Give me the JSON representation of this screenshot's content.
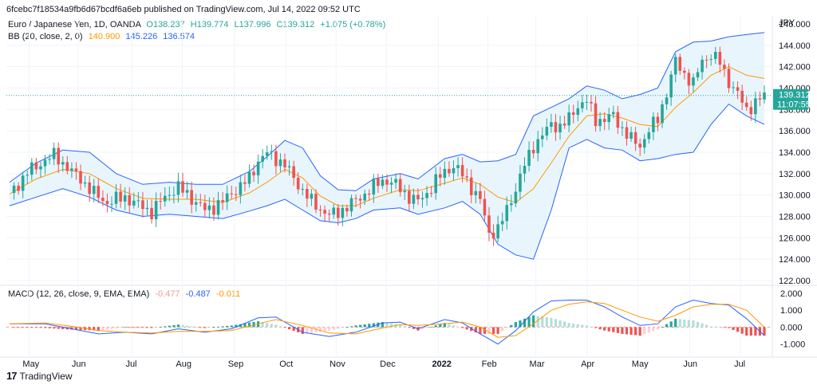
{
  "header": "6fcebc7f18534a9fb6d67bcdf6a6eb published on TradingView.com, Jul 14, 2022 09:52 UTC",
  "legend": {
    "symbol": "Euro / Japanese Yen, 1D, OANDA",
    "open": "O138.237",
    "high": "H139.774",
    "low": "L137.996",
    "close": "C139.312",
    "change": "+1.075 (+0.78%)",
    "bb_label": "BB (20, close, 2, 0)",
    "bb_basis": "140.900",
    "bb_upper": "145.226",
    "bb_lower": "136.574",
    "macd_label": "MACD (12, 26, close, 9, EMA, EMA)",
    "macd_hist": "-0.477",
    "macd_line": "-0.487",
    "macd_signal": "-0.011"
  },
  "price_box": {
    "price": "139.312",
    "countdown": "11:07:55"
  },
  "brand": {
    "logo": "TradingView"
  },
  "colors": {
    "up": "#26a69a",
    "down": "#ef5350",
    "bb_fill": "#e3f2fd",
    "bb_band": "#2962ff",
    "basis": "#ff9800",
    "macd": "#2962ff",
    "signal": "#ff9800"
  },
  "chart_data": {
    "type": "candlestick",
    "price_axis": {
      "unit": "JPY",
      "ticks": [
        "146.000",
        "144.000",
        "142.000",
        "140.000",
        "138.000",
        "136.000",
        "134.000",
        "132.000",
        "130.000",
        "128.000",
        "126.000",
        "124.000",
        "122.000"
      ],
      "ylim": [
        122,
        146
      ]
    },
    "macd_axis": {
      "ticks": [
        "2.000",
        "1.000",
        "0.000",
        "-1.000"
      ],
      "ylim": [
        -1.3,
        2.0
      ]
    },
    "time_axis": {
      "labels": [
        "May",
        "Jun",
        "Jul",
        "Aug",
        "Sep",
        "Oct",
        "Nov",
        "Dec",
        "2022",
        "Feb",
        "Mar",
        "Apr",
        "May",
        "Jun",
        "Jul"
      ],
      "positions": [
        0.037,
        0.117,
        0.205,
        0.287,
        0.372,
        0.456,
        0.538,
        0.62,
        0.705,
        0.786,
        0.864,
        0.948,
        1.031,
        1.115,
        1.198
      ]
    },
    "close_path": [
      [
        0,
        130.2
      ],
      [
        2,
        131.0
      ],
      [
        4,
        132.2
      ],
      [
        6,
        132.6
      ],
      [
        8,
        133.3
      ],
      [
        10,
        133.7
      ],
      [
        12,
        133.0
      ],
      [
        14,
        132.2
      ],
      [
        16,
        131.5
      ],
      [
        18,
        130.6
      ],
      [
        20,
        129.8
      ],
      [
        22,
        129.3
      ],
      [
        24,
        129.6
      ],
      [
        26,
        129.8
      ],
      [
        28,
        129.3
      ],
      [
        30,
        128.9
      ],
      [
        32,
        128.4
      ],
      [
        34,
        129.4
      ],
      [
        36,
        130.2
      ],
      [
        38,
        130.7
      ],
      [
        40,
        130.1
      ],
      [
        42,
        129.3
      ],
      [
        44,
        128.6
      ],
      [
        46,
        128.9
      ],
      [
        48,
        129.4
      ],
      [
        50,
        130.2
      ],
      [
        52,
        130.8
      ],
      [
        54,
        131.6
      ],
      [
        56,
        133.2
      ],
      [
        58,
        133.9
      ],
      [
        60,
        133.4
      ],
      [
        62,
        132.8
      ],
      [
        64,
        131.6
      ],
      [
        66,
        130.4
      ],
      [
        68,
        129.4
      ],
      [
        70,
        128.7
      ],
      [
        72,
        128.1
      ],
      [
        74,
        128.4
      ],
      [
        76,
        128.9
      ],
      [
        78,
        129.5
      ],
      [
        80,
        130.1
      ],
      [
        82,
        130.8
      ],
      [
        84,
        131.4
      ],
      [
        86,
        131.2
      ],
      [
        88,
        130.6
      ],
      [
        90,
        129.8
      ],
      [
        92,
        129.4
      ],
      [
        94,
        130.2
      ],
      [
        96,
        131.3
      ],
      [
        98,
        132.2
      ],
      [
        100,
        132.7
      ],
      [
        102,
        131.9
      ],
      [
        104,
        130.7
      ],
      [
        106,
        129.5
      ],
      [
        108,
        126.4
      ],
      [
        110,
        126.8
      ],
      [
        112,
        128.6
      ],
      [
        114,
        130.6
      ],
      [
        116,
        132.8
      ],
      [
        118,
        134.6
      ],
      [
        120,
        135.6
      ],
      [
        122,
        136.6
      ],
      [
        124,
        136.4
      ],
      [
        126,
        137.1
      ],
      [
        128,
        138.4
      ],
      [
        130,
        138.8
      ],
      [
        132,
        137.0
      ],
      [
        134,
        137.1
      ],
      [
        136,
        137.4
      ],
      [
        138,
        136.2
      ],
      [
        140,
        135.2
      ],
      [
        142,
        134.6
      ],
      [
        144,
        136.1
      ],
      [
        146,
        137.1
      ],
      [
        148,
        139.6
      ],
      [
        150,
        142.5
      ],
      [
        152,
        141.3
      ],
      [
        154,
        140.4
      ],
      [
        156,
        142.6
      ],
      [
        158,
        143.1
      ],
      [
        160,
        142.4
      ],
      [
        162,
        140.6
      ],
      [
        164,
        139.4
      ],
      [
        166,
        138.0
      ],
      [
        168,
        138.6
      ],
      [
        170,
        139.3
      ]
    ],
    "bb_upper": [
      [
        0,
        131.2
      ],
      [
        6,
        133.0
      ],
      [
        12,
        134.2
      ],
      [
        18,
        134.0
      ],
      [
        24,
        132.0
      ],
      [
        30,
        131.0
      ],
      [
        36,
        131.2
      ],
      [
        42,
        131.0
      ],
      [
        48,
        131.0
      ],
      [
        54,
        132.2
      ],
      [
        58,
        133.6
      ],
      [
        62,
        135.1
      ],
      [
        66,
        134.4
      ],
      [
        70,
        131.8
      ],
      [
        74,
        130.5
      ],
      [
        78,
        130.4
      ],
      [
        82,
        131.5
      ],
      [
        88,
        132.0
      ],
      [
        92,
        131.5
      ],
      [
        98,
        133.4
      ],
      [
        102,
        133.8
      ],
      [
        106,
        133.1
      ],
      [
        110,
        133.2
      ],
      [
        114,
        133.8
      ],
      [
        118,
        137.4
      ],
      [
        122,
        138.2
      ],
      [
        126,
        139.0
      ],
      [
        130,
        140.2
      ],
      [
        134,
        139.8
      ],
      [
        138,
        139.0
      ],
      [
        142,
        139.4
      ],
      [
        146,
        140.0
      ],
      [
        150,
        143.4
      ],
      [
        154,
        144.3
      ],
      [
        158,
        144.4
      ],
      [
        162,
        144.8
      ],
      [
        166,
        145.0
      ],
      [
        170,
        145.2
      ]
    ],
    "bb_lower": [
      [
        0,
        129.0
      ],
      [
        6,
        129.8
      ],
      [
        12,
        130.6
      ],
      [
        18,
        129.8
      ],
      [
        24,
        128.6
      ],
      [
        30,
        128.0
      ],
      [
        36,
        128.2
      ],
      [
        42,
        128.0
      ],
      [
        48,
        127.8
      ],
      [
        54,
        128.5
      ],
      [
        58,
        129.0
      ],
      [
        62,
        129.6
      ],
      [
        66,
        128.6
      ],
      [
        70,
        127.6
      ],
      [
        74,
        127.4
      ],
      [
        78,
        127.8
      ],
      [
        82,
        128.6
      ],
      [
        88,
        128.8
      ],
      [
        92,
        128.2
      ],
      [
        98,
        128.8
      ],
      [
        102,
        129.4
      ],
      [
        106,
        128.2
      ],
      [
        110,
        125.4
      ],
      [
        114,
        124.4
      ],
      [
        118,
        124.0
      ],
      [
        122,
        128.6
      ],
      [
        126,
        134.4
      ],
      [
        130,
        135.2
      ],
      [
        134,
        134.4
      ],
      [
        138,
        134.2
      ],
      [
        142,
        133.2
      ],
      [
        146,
        133.4
      ],
      [
        150,
        133.8
      ],
      [
        154,
        134.0
      ],
      [
        158,
        136.6
      ],
      [
        162,
        138.5
      ],
      [
        166,
        137.4
      ],
      [
        170,
        136.6
      ]
    ],
    "bb_basis": [
      [
        0,
        130.1
      ],
      [
        6,
        131.5
      ],
      [
        12,
        132.4
      ],
      [
        18,
        132.0
      ],
      [
        24,
        130.6
      ],
      [
        30,
        129.7
      ],
      [
        36,
        129.6
      ],
      [
        42,
        129.6
      ],
      [
        48,
        129.3
      ],
      [
        54,
        130.2
      ],
      [
        58,
        131.2
      ],
      [
        62,
        132.4
      ],
      [
        66,
        131.6
      ],
      [
        70,
        129.9
      ],
      [
        74,
        129.0
      ],
      [
        78,
        129.0
      ],
      [
        82,
        129.7
      ],
      [
        88,
        130.5
      ],
      [
        92,
        130.4
      ],
      [
        98,
        131.1
      ],
      [
        102,
        131.6
      ],
      [
        106,
        131.0
      ],
      [
        110,
        129.8
      ],
      [
        114,
        129.3
      ],
      [
        118,
        130.6
      ],
      [
        122,
        133.0
      ],
      [
        126,
        135.5
      ],
      [
        130,
        137.4
      ],
      [
        134,
        137.6
      ],
      [
        138,
        137.2
      ],
      [
        142,
        136.6
      ],
      [
        146,
        136.4
      ],
      [
        150,
        138.2
      ],
      [
        154,
        139.6
      ],
      [
        158,
        141.2
      ],
      [
        162,
        142.0
      ],
      [
        166,
        141.2
      ],
      [
        170,
        140.9
      ]
    ],
    "macd_line": [
      [
        0,
        0.2
      ],
      [
        8,
        0.2
      ],
      [
        14,
        -0.1
      ],
      [
        20,
        -0.4
      ],
      [
        26,
        -0.3
      ],
      [
        32,
        -0.4
      ],
      [
        38,
        -0.1
      ],
      [
        44,
        -0.3
      ],
      [
        50,
        -0.1
      ],
      [
        56,
        0.55
      ],
      [
        60,
        0.6
      ],
      [
        66,
        -0.3
      ],
      [
        72,
        -0.55
      ],
      [
        78,
        -0.3
      ],
      [
        84,
        0.25
      ],
      [
        88,
        0.3
      ],
      [
        92,
        -0.1
      ],
      [
        98,
        0.45
      ],
      [
        102,
        0.25
      ],
      [
        106,
        -0.4
      ],
      [
        110,
        -1.0
      ],
      [
        114,
        -0.2
      ],
      [
        118,
        0.9
      ],
      [
        122,
        1.55
      ],
      [
        126,
        1.6
      ],
      [
        130,
        1.6
      ],
      [
        134,
        1.2
      ],
      [
        138,
        0.6
      ],
      [
        142,
        0.1
      ],
      [
        146,
        0.2
      ],
      [
        150,
        1.2
      ],
      [
        154,
        1.6
      ],
      [
        158,
        1.4
      ],
      [
        162,
        1.3
      ],
      [
        166,
        0.5
      ],
      [
        170,
        -0.5
      ]
    ],
    "signal_line": [
      [
        0,
        0.2
      ],
      [
        8,
        0.25
      ],
      [
        14,
        0.05
      ],
      [
        20,
        -0.2
      ],
      [
        26,
        -0.3
      ],
      [
        32,
        -0.35
      ],
      [
        38,
        -0.25
      ],
      [
        44,
        -0.25
      ],
      [
        50,
        -0.2
      ],
      [
        56,
        0.2
      ],
      [
        60,
        0.45
      ],
      [
        66,
        0.1
      ],
      [
        72,
        -0.35
      ],
      [
        78,
        -0.4
      ],
      [
        84,
        -0.05
      ],
      [
        88,
        0.15
      ],
      [
        92,
        0.1
      ],
      [
        98,
        0.2
      ],
      [
        102,
        0.3
      ],
      [
        106,
        0.0
      ],
      [
        110,
        -0.6
      ],
      [
        114,
        -0.5
      ],
      [
        118,
        0.2
      ],
      [
        122,
        1.0
      ],
      [
        126,
        1.35
      ],
      [
        130,
        1.5
      ],
      [
        134,
        1.4
      ],
      [
        138,
        1.0
      ],
      [
        142,
        0.6
      ],
      [
        146,
        0.35
      ],
      [
        150,
        0.7
      ],
      [
        154,
        1.2
      ],
      [
        158,
        1.35
      ],
      [
        162,
        1.35
      ],
      [
        166,
        1.0
      ],
      [
        170,
        0.0
      ]
    ]
  }
}
